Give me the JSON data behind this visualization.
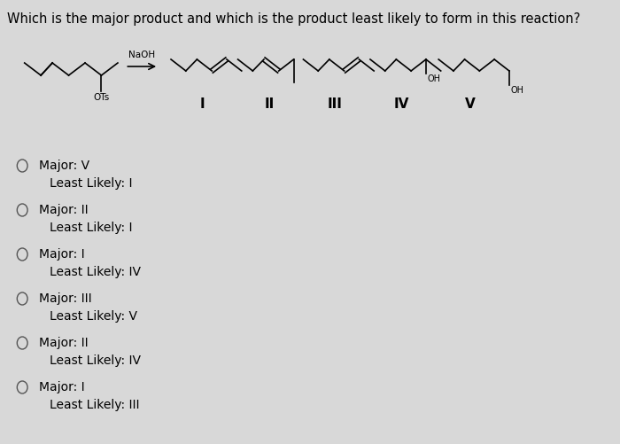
{
  "title": "Which is the major product and which is the product least likely to form in this reaction?",
  "background_color": "#d8d8d8",
  "title_fontsize": 10.5,
  "options": [
    {
      "major": "V",
      "least": "I"
    },
    {
      "major": "II",
      "least": "I"
    },
    {
      "major": "I",
      "least": "IV"
    },
    {
      "major": "III",
      "least": "V"
    },
    {
      "major": "II",
      "least": "IV"
    },
    {
      "major": "I",
      "least": "III"
    }
  ],
  "reactant_label": "OTs",
  "reagent_label": "NaOH",
  "product_labels": [
    "I",
    "II",
    "III",
    "IV",
    "V"
  ]
}
